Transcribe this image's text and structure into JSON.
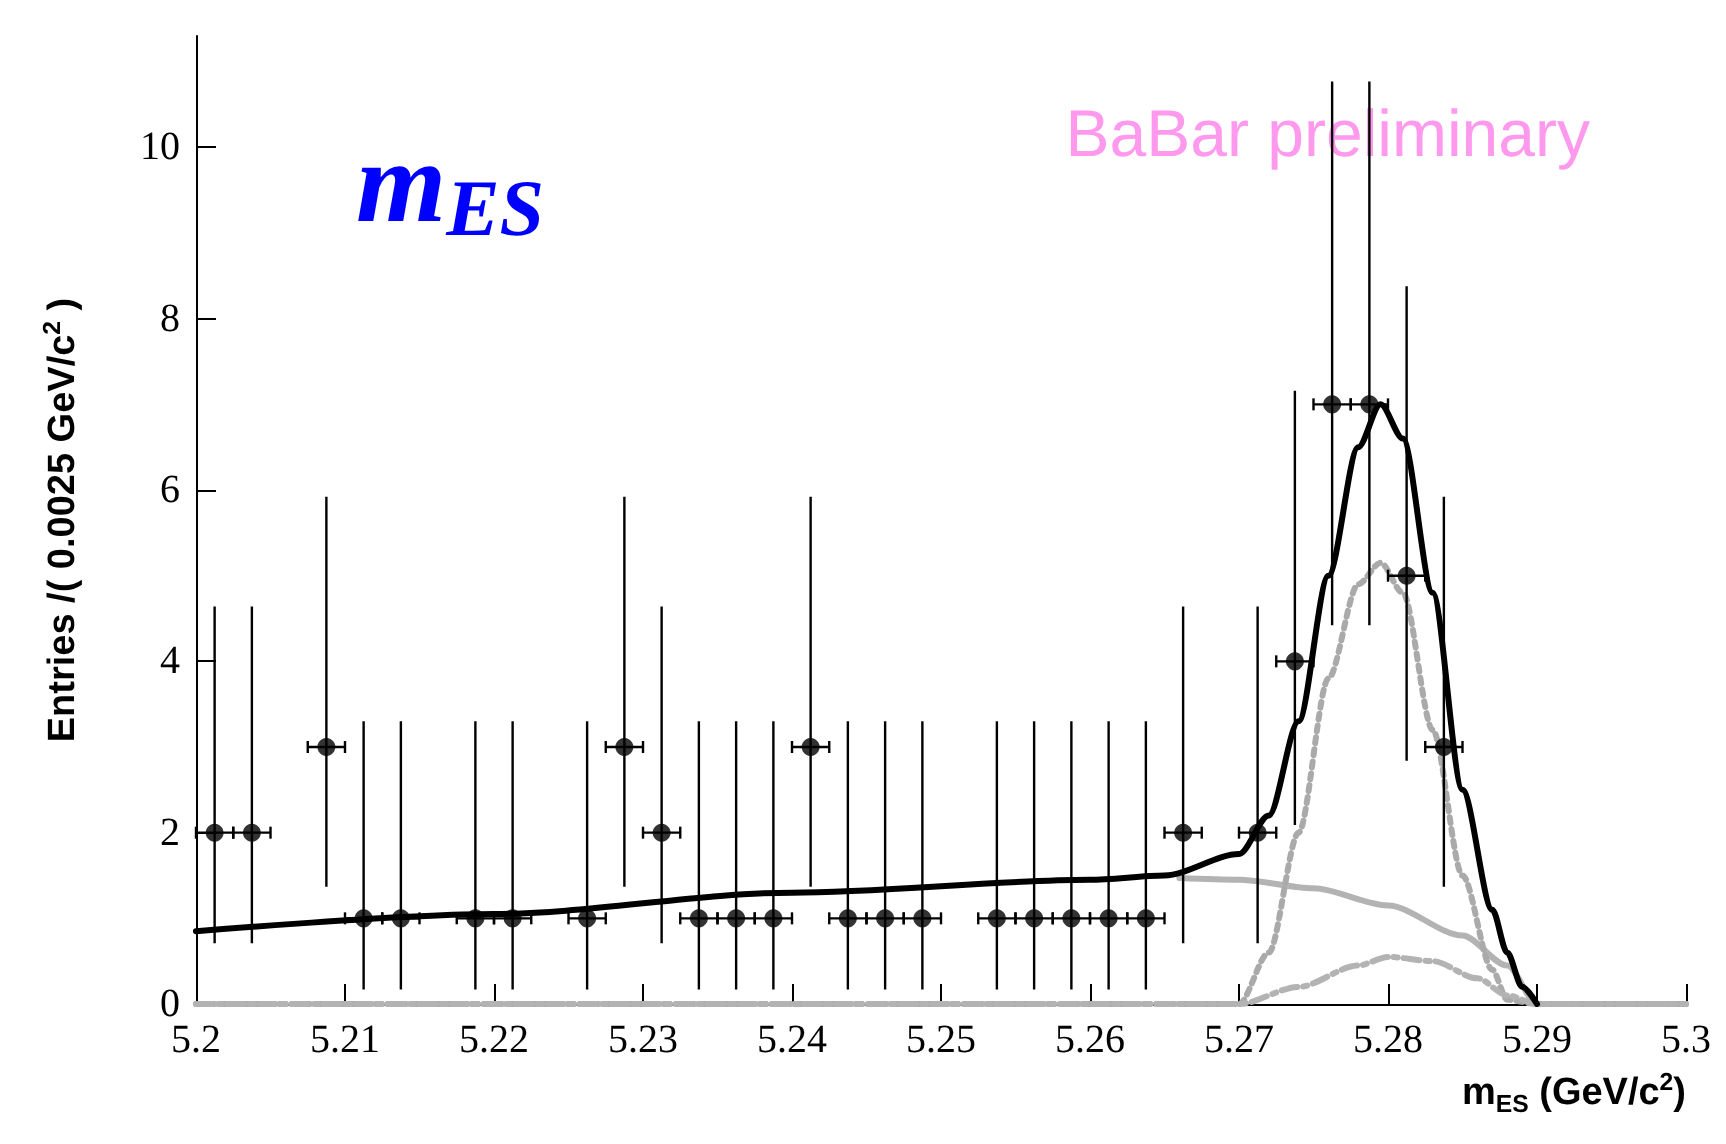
{
  "chart_data": {
    "type": "scatter",
    "title": "m$_{ES}$",
    "xlabel": "m$_{ES}$ (GeV/c$^{2}$)",
    "ylabel": "Entries /( 0.0025 GeV/c$^{2}$ )",
    "annotations": [
      "BaBar preliminary"
    ],
    "xlim": [
      5.2,
      5.3
    ],
    "xticks": [
      5.2,
      5.21,
      5.22,
      5.23,
      5.24,
      5.25,
      5.26,
      5.27,
      5.28,
      5.29,
      5.3
    ],
    "ylim": [
      0,
      11.3
    ],
    "yticks": [
      0,
      2,
      4,
      6,
      8,
      10
    ],
    "grid": false,
    "series": [
      {
        "type": "line",
        "color": "#b3b3b3",
        "line_style": "solid",
        "x": [
          5.266,
          5.27,
          5.275,
          5.28,
          5.285,
          5.288,
          5.29,
          5.3
        ],
        "values": [
          1.47,
          1.45,
          1.35,
          1.15,
          0.8,
          0.45,
          0,
          0
        ]
      },
      {
        "type": "line",
        "color": "#aaaaaa",
        "line_style": "dotted",
        "x": [
          5.2,
          5.27,
          5.272,
          5.274,
          5.276,
          5.278,
          5.2795,
          5.281,
          5.283,
          5.285,
          5.287,
          5.288,
          5.29,
          5.3
        ],
        "values": [
          0,
          0,
          0.6,
          2,
          3.8,
          4.9,
          5.15,
          4.8,
          3.2,
          1.5,
          0.4,
          0.05,
          0,
          0
        ]
      },
      {
        "type": "line",
        "color": "#b3b3b3",
        "line_style": "dashed",
        "x": [
          5.2,
          5.27,
          5.274,
          5.278,
          5.28,
          5.283,
          5.286,
          5.288,
          5.29,
          5.3
        ],
        "values": [
          0,
          0,
          0.2,
          0.45,
          0.55,
          0.5,
          0.3,
          0.1,
          0,
          0
        ]
      },
      {
        "type": "line",
        "color": "#000000",
        "line_style": "solid",
        "x": [
          5.2,
          5.22,
          5.24,
          5.26,
          5.265,
          5.27,
          5.272,
          5.274,
          5.276,
          5.278,
          5.2795,
          5.281,
          5.283,
          5.285,
          5.287,
          5.288,
          5.289,
          5.29
        ],
        "values": [
          0.85,
          1.05,
          1.3,
          1.45,
          1.5,
          1.75,
          2.2,
          3.3,
          5,
          6.5,
          7,
          6.6,
          4.8,
          2.5,
          1.1,
          0.6,
          0.2,
          0
        ]
      },
      {
        "color": "#000000",
        "marker": "circle",
        "x": [
          5.20125,
          5.20375,
          5.20875,
          5.21125,
          5.21375,
          5.21875,
          5.22125,
          5.22625,
          5.22875,
          5.23125,
          5.23375,
          5.23625,
          5.23875,
          5.24125,
          5.24375,
          5.24625,
          5.24875,
          5.25375,
          5.25625,
          5.25875,
          5.26125,
          5.26375,
          5.26625,
          5.27125,
          5.27375,
          5.27625,
          5.27875,
          5.28125,
          5.28375
        ],
        "values": [
          2,
          2,
          3,
          1,
          1,
          1,
          1,
          1,
          3,
          2,
          1,
          1,
          1,
          3,
          1,
          1,
          1,
          1,
          1,
          1,
          1,
          1,
          2,
          2,
          4,
          7,
          7,
          5,
          3
        ],
        "errors": [
          [
            0.71,
            4.64
          ],
          [
            0.71,
            4.64
          ],
          [
            1.37,
            5.92
          ],
          [
            0.17,
            3.3
          ],
          [
            0.17,
            3.3
          ],
          [
            0.17,
            3.3
          ],
          [
            0.17,
            3.3
          ],
          [
            0.17,
            3.3
          ],
          [
            1.37,
            5.92
          ],
          [
            0.71,
            4.64
          ],
          [
            0.17,
            3.3
          ],
          [
            0.17,
            3.3
          ],
          [
            0.17,
            3.3
          ],
          [
            1.37,
            5.92
          ],
          [
            0.17,
            3.3
          ],
          [
            0.17,
            3.3
          ],
          [
            0.17,
            3.3
          ],
          [
            0.17,
            3.3
          ],
          [
            0.17,
            3.3
          ],
          [
            0.17,
            3.3
          ],
          [
            0.17,
            3.3
          ],
          [
            0.17,
            3.3
          ],
          [
            0.71,
            4.64
          ],
          [
            0.71,
            4.64
          ],
          [
            2.09,
            7.16
          ],
          [
            4.42,
            10.77
          ],
          [
            4.42,
            10.77
          ],
          [
            2.84,
            8.38
          ],
          [
            1.37,
            5.92
          ]
        ],
        "xerrors": [
          0.00125,
          0.00125,
          0.00125,
          0.00125,
          0.00125,
          0.00125,
          0.00125,
          0.00125,
          0.00125,
          0.00125,
          0.00125,
          0.00125,
          0.00125,
          0.00125,
          0.00125,
          0.00125,
          0.00125,
          0.00125,
          0.00125,
          0.00125,
          0.00125,
          0.00125,
          0.00125,
          0.00125,
          0.00125,
          0.00125,
          0.00125,
          0.00125,
          0.00125
        ]
      }
    ]
  }
}
